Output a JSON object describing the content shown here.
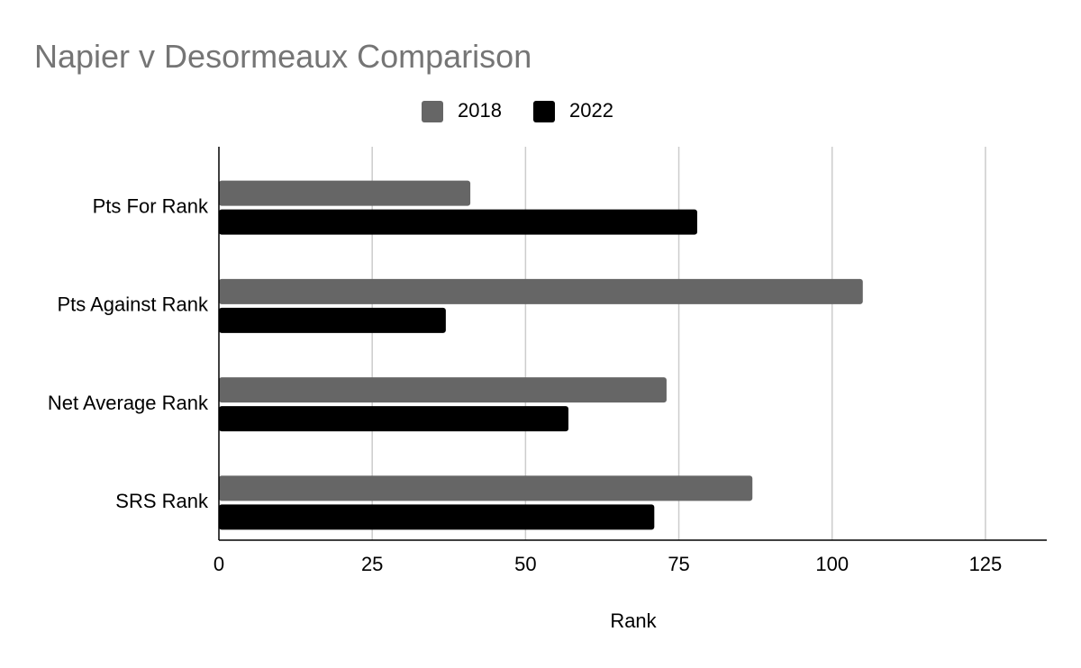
{
  "chart_data": {
    "type": "bar",
    "orientation": "horizontal",
    "title": "Napier v Desormeaux Comparison",
    "x_label": "Rank",
    "categories": [
      "Pts For Rank",
      "Pts Against Rank",
      "Net Average Rank",
      "SRS Rank"
    ],
    "series": [
      {
        "name": "2018",
        "color": "#666666",
        "values": [
          41,
          105,
          73,
          87
        ]
      },
      {
        "name": "2022",
        "color": "#000000",
        "values": [
          78,
          37,
          57,
          71
        ]
      }
    ],
    "xlim": [
      0,
      135
    ],
    "xticks": [
      0,
      25,
      50,
      75,
      100,
      125
    ],
    "grid": true,
    "legend": "top"
  }
}
